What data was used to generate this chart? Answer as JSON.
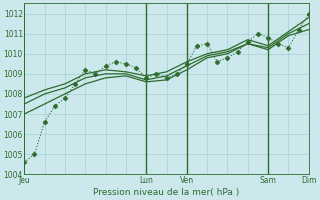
{
  "xlabel": "Pression niveau de la mer( hPa )",
  "bg_color": "#cce8ec",
  "grid_color": "#99ccd0",
  "line_color": "#2d6b2d",
  "dark_vline_color": "#2d6b2d",
  "ylim": [
    1004.2,
    1012.5
  ],
  "xlim": [
    0,
    168
  ],
  "yticks": [
    1005,
    1006,
    1007,
    1008,
    1009,
    1010,
    1011,
    1012
  ],
  "xtick_positions": [
    0,
    72,
    96,
    144,
    168
  ],
  "xtick_labels": [
    "Jeu",
    "Lun",
    "Ven",
    "Sam",
    "Dim"
  ],
  "dark_vlines": [
    72,
    96,
    144
  ],
  "series": [
    {
      "x": [
        0,
        6,
        12,
        18,
        24,
        30,
        36,
        42,
        48,
        54,
        60,
        66,
        72,
        78,
        84,
        90,
        96,
        102,
        108,
        114,
        120,
        126,
        132,
        138,
        144,
        150,
        156,
        162,
        168
      ],
      "y": [
        1004.6,
        1005.0,
        1006.6,
        1007.4,
        1007.8,
        1008.5,
        1009.2,
        1009.0,
        1009.4,
        1009.6,
        1009.5,
        1009.3,
        1008.8,
        1009.0,
        1008.8,
        1009.0,
        1009.5,
        1010.4,
        1010.5,
        1009.6,
        1009.8,
        1010.1,
        1010.6,
        1011.0,
        1010.8,
        1010.5,
        1010.3,
        1011.2,
        1012.0
      ],
      "style": "dotted",
      "marker": "D",
      "markersize": 2.5,
      "lw": 0.8
    },
    {
      "x": [
        0,
        12,
        24,
        36,
        48,
        60,
        72,
        84,
        96,
        108,
        120,
        132,
        144,
        156,
        168
      ],
      "y": [
        1007.0,
        1007.5,
        1008.0,
        1008.5,
        1008.8,
        1008.9,
        1008.6,
        1008.7,
        1009.2,
        1009.8,
        1010.0,
        1010.5,
        1010.2,
        1010.9,
        1011.2
      ],
      "style": "solid",
      "marker": null,
      "markersize": 0,
      "lw": 0.9
    },
    {
      "x": [
        0,
        12,
        24,
        36,
        48,
        60,
        72,
        84,
        96,
        108,
        120,
        132,
        144,
        156,
        168
      ],
      "y": [
        1007.5,
        1008.0,
        1008.3,
        1008.8,
        1009.0,
        1009.0,
        1008.7,
        1008.9,
        1009.4,
        1009.9,
        1010.1,
        1010.5,
        1010.3,
        1011.0,
        1011.5
      ],
      "style": "solid",
      "marker": null,
      "markersize": 0,
      "lw": 0.9
    },
    {
      "x": [
        0,
        12,
        24,
        36,
        48,
        60,
        72,
        84,
        96,
        108,
        120,
        132,
        144,
        156,
        168
      ],
      "y": [
        1007.8,
        1008.2,
        1008.5,
        1009.0,
        1009.2,
        1009.1,
        1008.9,
        1009.1,
        1009.6,
        1010.0,
        1010.2,
        1010.7,
        1010.4,
        1011.1,
        1011.8
      ],
      "style": "solid",
      "marker": null,
      "markersize": 0,
      "lw": 0.9
    }
  ]
}
